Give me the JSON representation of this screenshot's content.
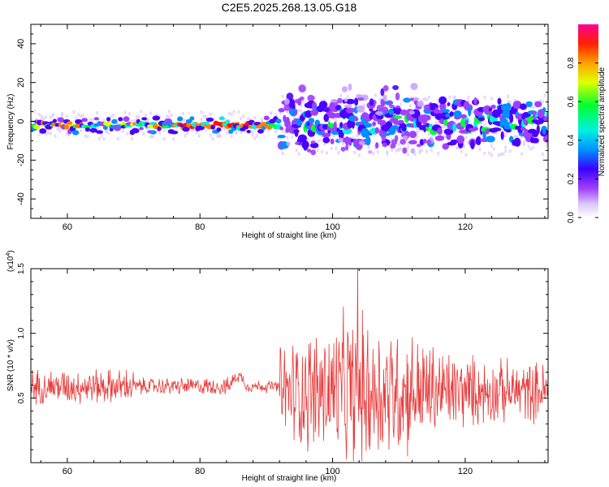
{
  "title": "C2E5.2025.268.13.05.G18",
  "chart_data": [
    {
      "type": "heatmap",
      "xlabel": "Height of straight line (km)",
      "ylabel": "Frequency (Hz)",
      "xlim": [
        54.5,
        132.5
      ],
      "ylim": [
        -50,
        50
      ],
      "x_ticks": [
        60,
        80,
        100,
        120
      ],
      "y_ticks": [
        40,
        20,
        0,
        -20,
        -40
      ],
      "colorbar": {
        "label": "Normalized spectral amplitude",
        "range": [
          0,
          1
        ],
        "ticks": [
          "0.0",
          "0.2",
          "0.4",
          "0.6",
          "0.8"
        ]
      },
      "features": {
        "band_center_hz": -2,
        "band_halfwidth_hz_below_92km": 4,
        "band_halfwidth_hz_above_92km": 12,
        "high_amplitude_region_km": [
          76,
          90
        ],
        "turbulent_region_km": [
          92,
          132.5
        ]
      }
    },
    {
      "type": "line",
      "xlabel": "Height of straight line (km)",
      "ylabel": "SNR (10 * v/v)",
      "multiplier_label": "(x10",
      "multiplier_exp": "4",
      "xlim": [
        54.5,
        132.5
      ],
      "ylim": [
        0,
        1.5
      ],
      "x_ticks": [
        60,
        80,
        100,
        120
      ],
      "y_ticks": [
        "1.5",
        "1.0",
        "0.5"
      ],
      "series": [
        {
          "name": "SNR",
          "color": "#e83a3a",
          "segments": [
            {
              "x_range": [
                54.5,
                92
              ],
              "mean": 0.59,
              "amplitude": 0.12
            },
            {
              "x_range": [
                92,
                132.5
              ],
              "mean": 0.55,
              "amplitude": 0.45,
              "peak_x": 103.8,
              "peak_y": 1.5
            }
          ]
        }
      ]
    }
  ]
}
